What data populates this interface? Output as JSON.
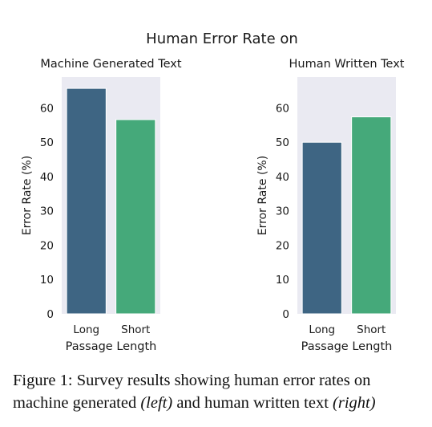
{
  "figure": {
    "suptitle": "Human Error Rate on"
  },
  "chart_data": [
    {
      "type": "bar",
      "title": "Machine Generated Text",
      "categories": [
        "Long",
        "Short"
      ],
      "values": [
        65.7,
        56.6
      ],
      "xlabel": "Passage Length",
      "ylabel": "Error Rate (%)",
      "ylim": [
        0,
        69
      ],
      "yticks": [
        "0",
        "10",
        "20",
        "30",
        "40",
        "50",
        "60"
      ],
      "colors": [
        "#3e6583",
        "#45a97a"
      ],
      "grid": false,
      "background": "#eaeaf2"
    },
    {
      "type": "bar",
      "title": "Human Written Text",
      "categories": [
        "Long",
        "Short"
      ],
      "values": [
        50.0,
        57.4
      ],
      "xlabel": "Passage Length",
      "ylabel": "Error Rate (%)",
      "ylim": [
        0,
        69
      ],
      "yticks": [
        "0",
        "10",
        "20",
        "30",
        "40",
        "50",
        "60"
      ],
      "colors": [
        "#3e6583",
        "#45a97a"
      ],
      "grid": false,
      "background": "#eaeaf2"
    }
  ],
  "caption": {
    "line1": "Figure 1: Survey results showing human error rates on",
    "line2_a": "machine generated ",
    "line2_b": "(left)",
    "line2_c": " and human written text ",
    "line2_d": "(right)"
  }
}
